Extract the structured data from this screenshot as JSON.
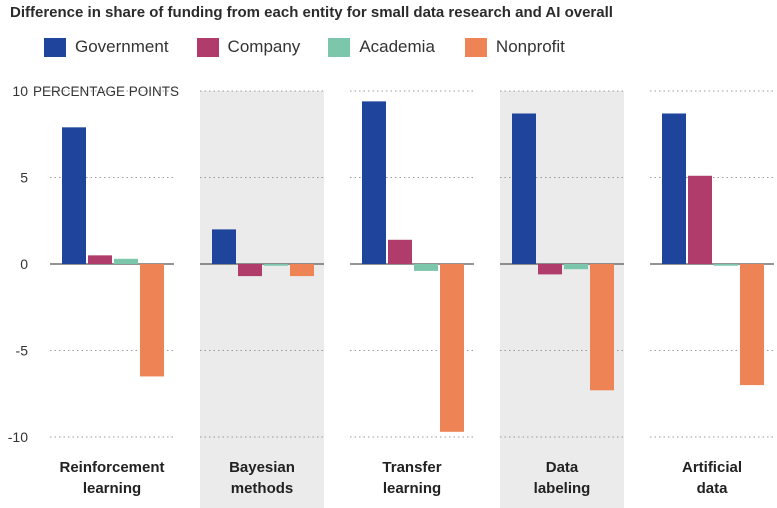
{
  "chart_data": {
    "type": "bar",
    "title": "Difference in share of funding from each entity for small data research and AI overall",
    "ylabel": "PERCENTAGE POINTS",
    "ylim": [
      -10,
      10
    ],
    "yticks": [
      10,
      5,
      0,
      -5,
      -10
    ],
    "ytick_labels": [
      "10",
      "5",
      "0",
      "-5",
      "-10"
    ],
    "grid": true,
    "legend_position": "top",
    "categories": [
      {
        "lines": [
          "Reinforcement",
          "learning"
        ],
        "shaded": false
      },
      {
        "lines": [
          "Bayesian",
          "methods"
        ],
        "shaded": true
      },
      {
        "lines": [
          "Transfer",
          "learning"
        ],
        "shaded": false
      },
      {
        "lines": [
          "Data",
          "labeling"
        ],
        "shaded": true
      },
      {
        "lines": [
          "Artificial",
          "data"
        ],
        "shaded": false
      }
    ],
    "series": [
      {
        "name": "Government",
        "color": "#1f449c",
        "values": [
          7.9,
          2.0,
          9.4,
          8.7,
          8.7
        ]
      },
      {
        "name": "Company",
        "color": "#b03c6b",
        "values": [
          0.5,
          -0.7,
          1.4,
          -0.6,
          5.1
        ]
      },
      {
        "name": "Academia",
        "color": "#7cc6ab",
        "values": [
          0.3,
          -0.1,
          -0.4,
          -0.3,
          -0.1
        ]
      },
      {
        "name": "Nonprofit",
        "color": "#ee8456",
        "values": [
          -6.5,
          -0.7,
          -9.7,
          -7.3,
          -7.0
        ]
      }
    ],
    "shade_color": "#ebebec"
  }
}
